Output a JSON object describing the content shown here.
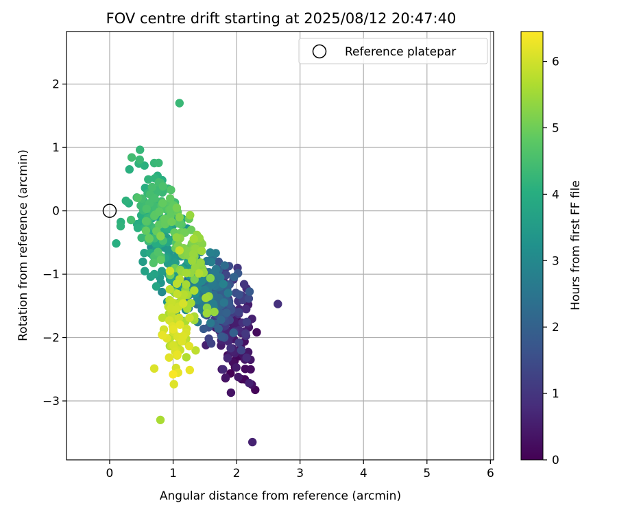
{
  "chart_data": {
    "type": "scatter",
    "title": "FOV centre drift starting at 2025/08/12 20:47:40",
    "xlabel": "Angular distance from reference (arcmin)",
    "ylabel": "Rotation from reference (arcmin)",
    "xlim": [
      -0.68,
      6.05
    ],
    "ylim": [
      -3.93,
      2.83
    ],
    "xticks": [
      "0",
      "1",
      "2",
      "3",
      "4",
      "5",
      "6"
    ],
    "yticks": [
      "−3",
      "−2",
      "−1",
      "0",
      "1",
      "2"
    ],
    "grid": true,
    "legend": {
      "placement": "top-right",
      "entries": [
        "Reference platepar"
      ]
    },
    "reference_point": {
      "x": 0,
      "y": 0
    },
    "colorbar": {
      "label": "Hours from first FF file",
      "range": [
        0,
        6.45
      ],
      "ticks": [
        "0",
        "1",
        "2",
        "3",
        "4",
        "5",
        "6"
      ],
      "colormap": "viridis"
    },
    "generator": {
      "count": 620,
      "note": "points sampled from the drift pattern shown"
    }
  }
}
